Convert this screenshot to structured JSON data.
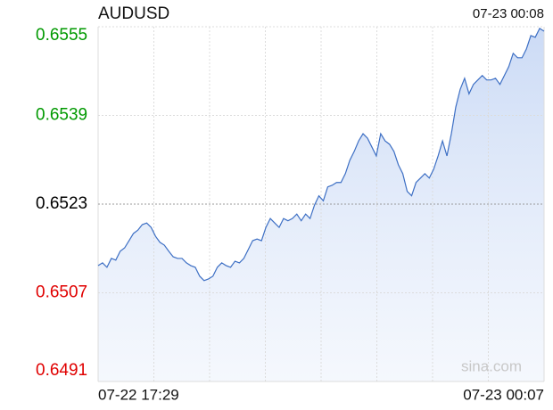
{
  "chart_data": {
    "type": "line",
    "title": "AUDUSD",
    "timestamp": "07-23 00:08",
    "watermark": "sina.com",
    "series": [
      {
        "name": "AUDUSD",
        "color": "#3d6fc4",
        "values": [
          0.65119,
          0.65124,
          0.65116,
          0.65132,
          0.65129,
          0.65145,
          0.65151,
          0.65164,
          0.65177,
          0.65183,
          0.65193,
          0.65196,
          0.65188,
          0.65172,
          0.65161,
          0.65156,
          0.65145,
          0.65135,
          0.65132,
          0.65132,
          0.65124,
          0.65119,
          0.65116,
          0.651,
          0.65092,
          0.65095,
          0.651,
          0.65116,
          0.65124,
          0.65119,
          0.65116,
          0.65127,
          0.65124,
          0.65132,
          0.65148,
          0.65164,
          0.65167,
          0.65164,
          0.65188,
          0.65204,
          0.65196,
          0.65188,
          0.65204,
          0.652,
          0.65204,
          0.65212,
          0.652,
          0.65212,
          0.65204,
          0.65228,
          0.65245,
          0.65236,
          0.65261,
          0.65264,
          0.65269,
          0.65269,
          0.65285,
          0.65309,
          0.65325,
          0.65344,
          0.65357,
          0.65349,
          0.65333,
          0.65317,
          0.65357,
          0.65344,
          0.65338,
          0.65325,
          0.65301,
          0.65285,
          0.65253,
          0.65245,
          0.65269,
          0.65277,
          0.65285,
          0.65277,
          0.65293,
          0.65317,
          0.65344,
          0.65317,
          0.65357,
          0.65405,
          0.65437,
          0.65457,
          0.65429,
          0.65446,
          0.65454,
          0.65462,
          0.65454,
          0.65454,
          0.65457,
          0.65446,
          0.65462,
          0.65478,
          0.65502,
          0.65494,
          0.65494,
          0.6551,
          0.65534,
          0.65531,
          0.65547,
          0.65542
        ]
      }
    ],
    "xlim": [
      0,
      101
    ],
    "xticks": [
      {
        "value": 0,
        "label": "07-22 17:29"
      },
      {
        "value": 101,
        "label": "07-23 00:07"
      }
    ],
    "xgrid_divisions": 8,
    "ylim": [
      0.6491,
      0.6555
    ],
    "yticks": [
      0.6491,
      0.6507,
      0.6523,
      0.6539,
      0.6555
    ],
    "ytick_colors": [
      "#e00000",
      "#e00000",
      "#000000",
      "#009900",
      "#009900"
    ],
    "ytick_dashed": [
      false,
      false,
      true,
      false,
      false
    ],
    "grid": true
  }
}
